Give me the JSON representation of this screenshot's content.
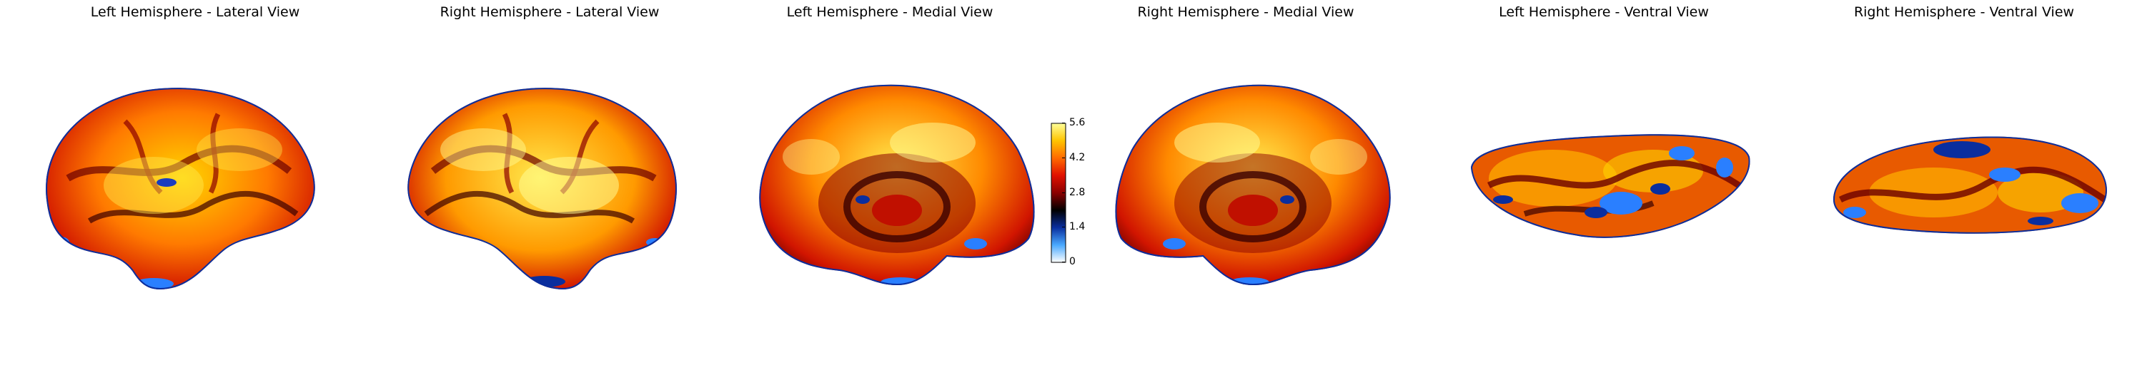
{
  "panels": [
    {
      "title": "Left Hemisphere - Lateral View"
    },
    {
      "title": "Right Hemisphere - Lateral View"
    },
    {
      "title": "Left Hemisphere - Medial View"
    },
    {
      "title": "Right Hemisphere - Medial View"
    },
    {
      "title": "Left Hemisphere - Ventral View"
    },
    {
      "title": "Right Hemisphere - Ventral View"
    }
  ],
  "colorbar": {
    "ticks": [
      "0",
      "1.4",
      "2.8",
      "4.2",
      "5.6"
    ],
    "min": 0,
    "max": 5.6,
    "colors": [
      "#ffffff",
      "#4aa9ff",
      "#0a2e9e",
      "#000000",
      "#8b0000",
      "#e01100",
      "#ff6a00",
      "#ffc400",
      "#ffff99"
    ]
  }
}
